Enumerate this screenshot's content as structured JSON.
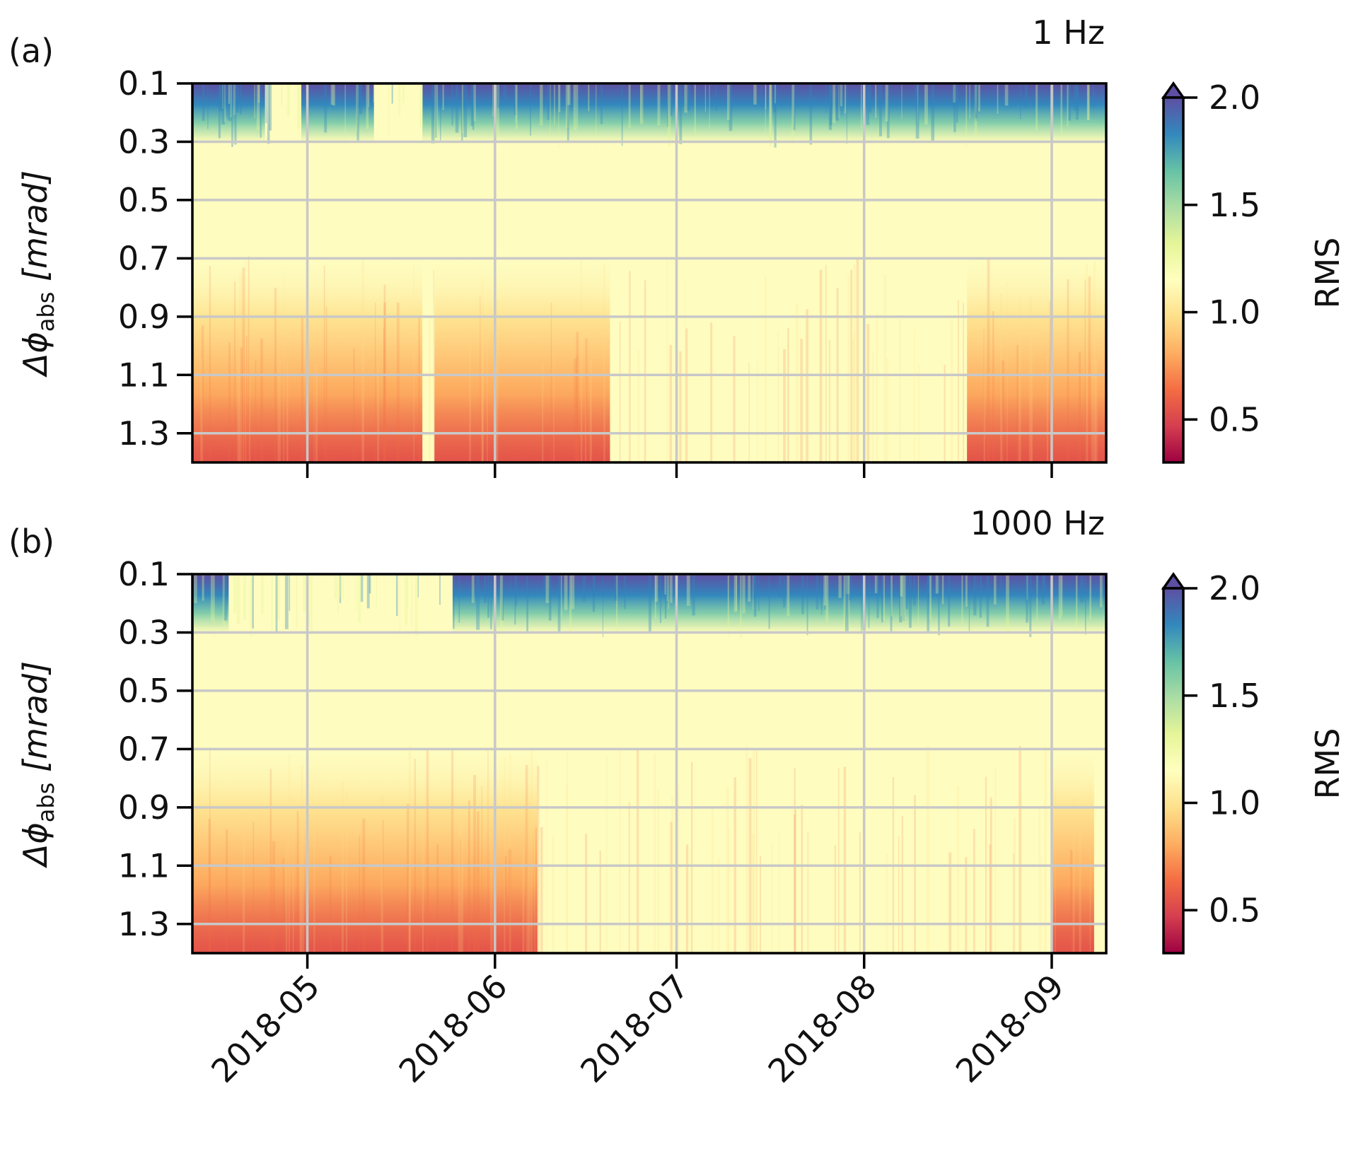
{
  "chart_data": [
    {
      "type": "heatmap",
      "panel_label": "(a)",
      "title": "1 Hz",
      "ylabel_main": "Δϕ",
      "ylabel_sub": "abs",
      "ylabel_unit": " [mrad]",
      "xlabel": "",
      "x_range": [
        "2018-04-12",
        "2018-09-10"
      ],
      "y_range": [
        0.1,
        1.4
      ],
      "y_ticks": [
        "0.1",
        "0.3",
        "0.5",
        "0.7",
        "0.9",
        "1.1",
        "1.3"
      ],
      "x_ticks": [
        "2018-05",
        "2018-06",
        "2018-07",
        "2018-08",
        "2018-09"
      ],
      "x_ticklabels_shown": false,
      "grid": true,
      "colorbar": {
        "label": "RMS",
        "range": [
          0.3,
          2.0
        ],
        "ticks": [
          "0.5",
          "1.0",
          "1.5",
          "2.0"
        ],
        "extend": "max",
        "colormap": "Spectral"
      },
      "features": {
        "band_high_rms_periods": [
          [
            "2018-04-12",
            "2018-04-24"
          ],
          [
            "2018-04-30",
            "2018-05-12"
          ],
          [
            "2018-05-20",
            "2018-09-10"
          ]
        ],
        "low_rms_periods": [
          [
            "2018-04-12",
            "2018-05-20"
          ],
          [
            "2018-05-22",
            "2018-06-20"
          ],
          [
            "2018-08-18",
            "2018-09-10"
          ]
        ]
      }
    },
    {
      "type": "heatmap",
      "panel_label": "(b)",
      "title": "1000 Hz",
      "ylabel_main": "Δϕ",
      "ylabel_sub": "abs",
      "ylabel_unit": " [mrad]",
      "xlabel": "",
      "x_range": [
        "2018-04-12",
        "2018-09-10"
      ],
      "y_range": [
        0.1,
        1.4
      ],
      "y_ticks": [
        "0.1",
        "0.3",
        "0.5",
        "0.7",
        "0.9",
        "1.1",
        "1.3"
      ],
      "x_ticks": [
        "2018-05",
        "2018-06",
        "2018-07",
        "2018-08",
        "2018-09"
      ],
      "x_ticklabels_shown": true,
      "grid": true,
      "colorbar": {
        "label": "RMS",
        "range": [
          0.3,
          2.0
        ],
        "ticks": [
          "0.5",
          "1.0",
          "1.5",
          "2.0"
        ],
        "extend": "max",
        "colormap": "Spectral"
      },
      "features": {
        "band_high_rms_periods": [
          [
            "2018-04-12",
            "2018-04-18"
          ],
          [
            "2018-05-25",
            "2018-09-10"
          ]
        ],
        "low_rms_periods": [
          [
            "2018-04-12",
            "2018-06-08"
          ],
          [
            "2018-09-01",
            "2018-09-08"
          ]
        ]
      }
    }
  ]
}
